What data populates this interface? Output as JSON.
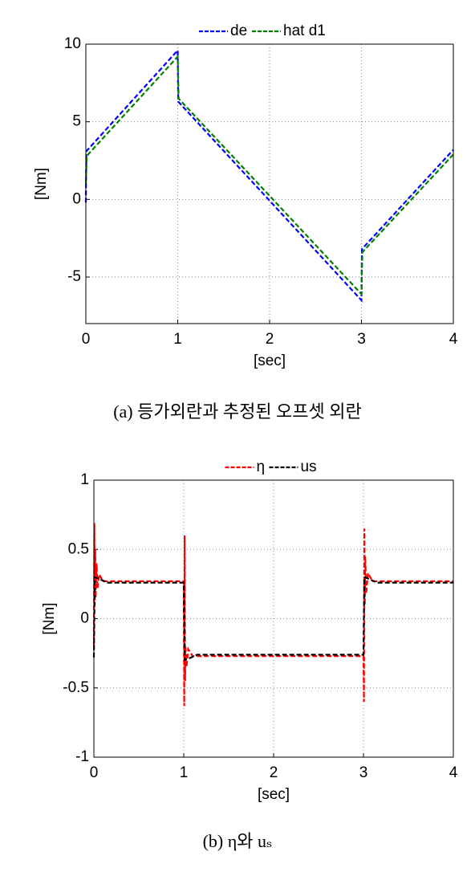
{
  "chart_data": [
    {
      "type": "line",
      "ylabel": "[Nm]",
      "xlabel": "[sec]",
      "caption": "(a) 등가외란과 추정된 오프셋 외란",
      "xlim": [
        0,
        4
      ],
      "xticks": [
        0,
        1,
        2,
        3,
        4
      ],
      "ylim": [
        -8,
        10
      ],
      "yticks": [
        -5,
        0,
        5,
        10
      ],
      "grid": true,
      "legend": "top",
      "series": [
        {
          "name": "de",
          "color": "#0000ff",
          "x": [
            0,
            0.005,
            1,
            1.005,
            3,
            3.005,
            4
          ],
          "values": [
            -0.2,
            3.1,
            9.6,
            6.3,
            -6.5,
            -3.2,
            3.2
          ]
        },
        {
          "name": "hat d1",
          "color": "#008000",
          "x": [
            0,
            0.01,
            1,
            1.01,
            3,
            3.01,
            4
          ],
          "values": [
            1.0,
            2.8,
            9.2,
            6.5,
            -6.1,
            -3.4,
            2.9
          ]
        }
      ]
    },
    {
      "type": "line",
      "ylabel": "[Nm]",
      "xlabel": "[sec]",
      "caption": "(b) η와 uₛ",
      "xlim": [
        0,
        4
      ],
      "xticks": [
        0,
        1,
        2,
        3,
        4
      ],
      "ylim": [
        -1,
        1
      ],
      "yticks": [
        -1,
        -0.5,
        0,
        0.5,
        1
      ],
      "grid": true,
      "legend": "top",
      "series": [
        {
          "name": "η",
          "color": "#ff0000",
          "x": [
            0,
            0.005,
            0.01,
            0.015,
            0.02,
            0.03,
            0.04,
            0.06,
            0.1,
            1,
            1.005,
            1.01,
            1.015,
            1.02,
            1.03,
            1.05,
            1.1,
            3,
            3.005,
            3.01,
            3.015,
            3.02,
            3.03,
            3.05,
            3.1,
            4
          ],
          "values": [
            -0.2,
            0.69,
            0.1,
            0.5,
            0.15,
            0.4,
            0.22,
            0.32,
            0.27,
            0.27,
            -0.63,
            0.6,
            -0.45,
            -0.2,
            -0.35,
            -0.22,
            -0.27,
            -0.27,
            -0.6,
            0.65,
            0.1,
            0.45,
            0.18,
            0.33,
            0.27,
            0.27
          ]
        },
        {
          "name": "us",
          "color": "#000000",
          "x": [
            0,
            0.01,
            0.05,
            0.15,
            1,
            1.01,
            1.05,
            1.15,
            3,
            3.01,
            3.05,
            3.15,
            4
          ],
          "values": [
            -0.28,
            0.3,
            0.29,
            0.26,
            0.26,
            -0.3,
            -0.29,
            -0.26,
            -0.26,
            0.3,
            0.29,
            0.26,
            0.26
          ]
        }
      ]
    }
  ]
}
